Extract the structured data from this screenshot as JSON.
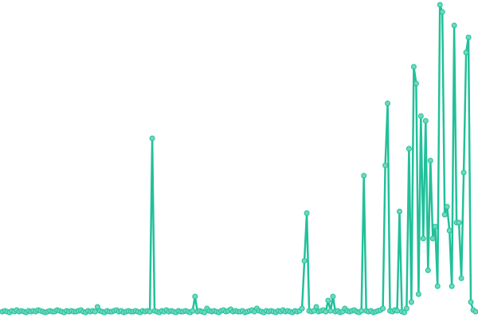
{
  "chart_data": {
    "type": "line",
    "color": "#22c09a",
    "marker_fill": "#6fd8bd",
    "ylim": [
      0,
      400
    ],
    "values": [
      8,
      9,
      8,
      7,
      9,
      8,
      10,
      8,
      9,
      8,
      7,
      9,
      8,
      9,
      8,
      10,
      9,
      8,
      7,
      8,
      9,
      8,
      8,
      10,
      9,
      8,
      7,
      9,
      8,
      9,
      8,
      8,
      9,
      10,
      8,
      7,
      9,
      8,
      9,
      8,
      14,
      9,
      8,
      7,
      9,
      8,
      8,
      9,
      10,
      8,
      9,
      7,
      8,
      9,
      8,
      8,
      9,
      8,
      7,
      9,
      8,
      9,
      8,
      226,
      9,
      8,
      7,
      9,
      8,
      10,
      8,
      9,
      8,
      7,
      9,
      8,
      8,
      9,
      8,
      7,
      9,
      27,
      8,
      9,
      8,
      7,
      12,
      9,
      8,
      9,
      8,
      7,
      9,
      10,
      8,
      9,
      11,
      8,
      9,
      8,
      8,
      9,
      7,
      8,
      9,
      10,
      8,
      12,
      9,
      8,
      7,
      9,
      8,
      9,
      8,
      7,
      9,
      8,
      10,
      8,
      9,
      8,
      7,
      9,
      8,
      9,
      12,
      72,
      132,
      9,
      8,
      9,
      14,
      8,
      9,
      10,
      8,
      22,
      9,
      27,
      8,
      9,
      7,
      8,
      12,
      9,
      8,
      9,
      10,
      8,
      7,
      9,
      179,
      9,
      8,
      9,
      7,
      8,
      9,
      10,
      12,
      192,
      270,
      9,
      8,
      10,
      9,
      134,
      8,
      7,
      12,
      213,
      20,
      316,
      295,
      30,
      254,
      100,
      248,
      60,
      198,
      100,
      115,
      40,
      394,
      385,
      130,
      140,
      110,
      40,
      368,
      120,
      120,
      50,
      183,
      334,
      353,
      20,
      10,
      8
    ]
  }
}
